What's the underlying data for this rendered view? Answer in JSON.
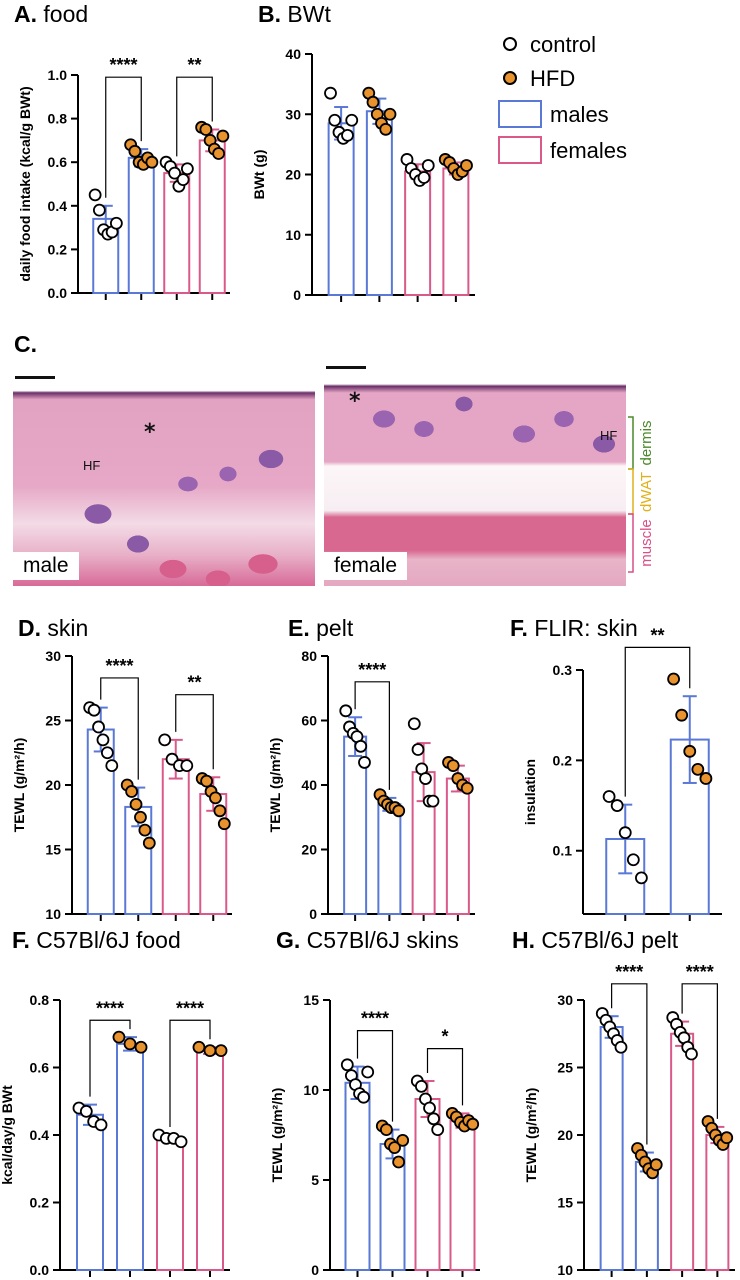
{
  "colors": {
    "male": "#5a78d6",
    "female": "#d95a8a",
    "hfd": "#e8932e",
    "control": "#ffffff"
  },
  "legend": {
    "control": "control",
    "hfd": "HFD",
    "males": "males",
    "females": "females"
  },
  "histology": {
    "panel_label": "C.",
    "male_label": "male",
    "female_label": "female",
    "hf": "HF",
    "asterisk": "*",
    "layers": {
      "dermis": "dermis",
      "dwat": "dWAT",
      "muscle": "muscle"
    }
  },
  "chart_data": [
    {
      "id": "A",
      "type": "bar",
      "letter": "A.",
      "title": "food",
      "ylabel": "daily food intake (kcal/g BWt)",
      "ylim": [
        0,
        1.0
      ],
      "yticks": [
        "0.0",
        "0.2",
        "0.4",
        "0.6",
        "0.8",
        "1.0"
      ],
      "ytick_values": [
        0,
        0.2,
        0.4,
        0.6,
        0.8,
        1.0
      ],
      "groups": [
        {
          "sex": "male",
          "diet": "control",
          "mean": 0.34,
          "sd": 0.06,
          "points": [
            0.45,
            0.38,
            0.29,
            0.27,
            0.28,
            0.32
          ]
        },
        {
          "sex": "male",
          "diet": "HFD",
          "mean": 0.62,
          "sd": 0.04,
          "points": [
            0.68,
            0.65,
            0.6,
            0.59,
            0.62,
            0.6
          ]
        },
        {
          "sex": "female",
          "diet": "control",
          "mean": 0.55,
          "sd": 0.04,
          "points": [
            0.6,
            0.58,
            0.55,
            0.49,
            0.52,
            0.57
          ]
        },
        {
          "sex": "female",
          "diet": "HFD",
          "mean": 0.7,
          "sd": 0.05,
          "points": [
            0.76,
            0.75,
            0.7,
            0.66,
            0.64,
            0.72
          ]
        }
      ],
      "sig": [
        {
          "from": 0,
          "to": 1,
          "label": "****",
          "level": 0.99
        },
        {
          "from": 2,
          "to": 3,
          "label": "**",
          "level": 0.99
        }
      ]
    },
    {
      "id": "B",
      "type": "bar",
      "letter": "B.",
      "title": "BWt",
      "ylabel": "BWt (g)",
      "ylim": [
        0,
        40
      ],
      "yticks": [
        "0",
        "10",
        "20",
        "30",
        "40"
      ],
      "ytick_values": [
        0,
        10,
        20,
        30,
        40
      ],
      "groups": [
        {
          "sex": "male",
          "diet": "control",
          "mean": 28.5,
          "sd": 2.7,
          "points": [
            33.5,
            29,
            27,
            26,
            26.5,
            29
          ]
        },
        {
          "sex": "male",
          "diet": "HFD",
          "mean": 30.5,
          "sd": 2.1,
          "points": [
            33.5,
            32,
            30,
            28.5,
            27.5,
            30
          ]
        },
        {
          "sex": "female",
          "diet": "control",
          "mean": 20.5,
          "sd": 1.2,
          "points": [
            22.5,
            21,
            20,
            19,
            19.5,
            21.5
          ]
        },
        {
          "sex": "female",
          "diet": "HFD",
          "mean": 21,
          "sd": 1.0,
          "points": [
            22.5,
            22,
            21,
            20,
            20.5,
            21.5
          ]
        }
      ],
      "sig": []
    },
    {
      "id": "D",
      "type": "bar",
      "letter": "D.",
      "title": "skin",
      "ylabel": "TEWL (g/m²/h)",
      "ylim": [
        10,
        30
      ],
      "yticks": [
        "10",
        "15",
        "20",
        "25",
        "30"
      ],
      "ytick_values": [
        10,
        15,
        20,
        25,
        30
      ],
      "groups": [
        {
          "sex": "male",
          "diet": "control",
          "mean": 24.3,
          "sd": 1.7,
          "points": [
            26,
            25.8,
            24.5,
            23.5,
            22.5,
            21.5
          ]
        },
        {
          "sex": "male",
          "diet": "HFD",
          "mean": 18.3,
          "sd": 1.5,
          "points": [
            20,
            19.5,
            18.5,
            17.5,
            16.5,
            15.5
          ]
        },
        {
          "sex": "female",
          "diet": "control",
          "mean": 22,
          "sd": 1.5,
          "points": [
            23.5,
            22,
            21.5,
            21.5
          ]
        },
        {
          "sex": "female",
          "diet": "HFD",
          "mean": 19.3,
          "sd": 1.3,
          "points": [
            20.5,
            20.3,
            19.5,
            19,
            18,
            17
          ]
        }
      ],
      "sig": [
        {
          "from": 0,
          "to": 1,
          "label": "****",
          "level": 28.3
        },
        {
          "from": 2,
          "to": 3,
          "label": "**",
          "level": 27.0
        }
      ]
    },
    {
      "id": "E",
      "type": "bar",
      "letter": "E.",
      "title": "pelt",
      "ylabel": "TEWL (g/m²/h)",
      "ylim": [
        0,
        80
      ],
      "yticks": [
        "0",
        "20",
        "40",
        "60",
        "80"
      ],
      "ytick_values": [
        0,
        20,
        40,
        60,
        80
      ],
      "groups": [
        {
          "sex": "male",
          "diet": "control",
          "mean": 55,
          "sd": 6,
          "points": [
            63,
            58,
            56,
            55,
            52,
            47
          ]
        },
        {
          "sex": "male",
          "diet": "HFD",
          "mean": 34,
          "sd": 2,
          "points": [
            37,
            35,
            34,
            33,
            33,
            32
          ]
        },
        {
          "sex": "female",
          "diet": "control",
          "mean": 44,
          "sd": 9,
          "points": [
            59,
            51,
            45,
            42,
            35,
            35
          ]
        },
        {
          "sex": "female",
          "diet": "HFD",
          "mean": 42,
          "sd": 4,
          "points": [
            47,
            46,
            42,
            40,
            39
          ]
        }
      ],
      "sig": [
        {
          "from": 0,
          "to": 1,
          "label": "****",
          "level": 72
        }
      ]
    },
    {
      "id": "F1",
      "type": "bar",
      "letter": "F.",
      "title": "FLIR: skin",
      "ylabel": "insulation",
      "ylim": [
        0.03,
        0.3
      ],
      "yticks": [
        "0.1",
        "0.2",
        "0.3"
      ],
      "ytick_values": [
        0.1,
        0.2,
        0.3
      ],
      "groups": [
        {
          "sex": "male",
          "diet": "control",
          "mean": 0.113,
          "sd": 0.038,
          "points": [
            0.16,
            0.15,
            0.12,
            0.09,
            0.07
          ]
        },
        {
          "sex": "male",
          "diet": "HFD",
          "mean": 0.223,
          "sd": 0.048,
          "points": [
            0.29,
            0.25,
            0.21,
            0.19,
            0.18
          ]
        }
      ],
      "sig": [
        {
          "from": 0,
          "to": 1,
          "label": "**",
          "level": 0.325
        }
      ]
    },
    {
      "id": "F2",
      "type": "bar",
      "letter": "F.",
      "title": "C57Bl/6J food",
      "ylabel": "kcal/day/g BWt",
      "ylim": [
        0,
        0.8
      ],
      "yticks": [
        "0.0",
        "0.2",
        "0.4",
        "0.6",
        "0.8"
      ],
      "ytick_values": [
        0,
        0.2,
        0.4,
        0.6,
        0.8
      ],
      "groups": [
        {
          "sex": "male",
          "diet": "control",
          "mean": 0.46,
          "sd": 0.03,
          "points": [
            0.48,
            0.47,
            0.44,
            0.43
          ]
        },
        {
          "sex": "male",
          "diet": "HFD",
          "mean": 0.67,
          "sd": 0.02,
          "points": [
            0.69,
            0.67,
            0.66
          ]
        },
        {
          "sex": "female",
          "diet": "control",
          "mean": 0.39,
          "sd": 0.01,
          "points": [
            0.4,
            0.39,
            0.39,
            0.38
          ]
        },
        {
          "sex": "female",
          "diet": "HFD",
          "mean": 0.65,
          "sd": 0.01,
          "points": [
            0.66,
            0.65,
            0.65
          ]
        }
      ],
      "sig": [
        {
          "from": 0,
          "to": 1,
          "label": "****",
          "level": 0.74
        },
        {
          "from": 2,
          "to": 3,
          "label": "****",
          "level": 0.74
        }
      ]
    },
    {
      "id": "G",
      "type": "bar",
      "letter": "G.",
      "title": "C57Bl/6J skins",
      "ylabel": "TEWL (g/m²/h)",
      "ylim": [
        0,
        15
      ],
      "yticks": [
        "0",
        "5",
        "10",
        "15"
      ],
      "ytick_values": [
        0,
        5,
        10,
        15
      ],
      "groups": [
        {
          "sex": "male",
          "diet": "control",
          "mean": 10.4,
          "sd": 0.9,
          "points": [
            11.4,
            10.8,
            10.3,
            9.8,
            9.6,
            11
          ]
        },
        {
          "sex": "male",
          "diet": "HFD",
          "mean": 7,
          "sd": 0.8,
          "points": [
            8,
            7.8,
            7,
            6.8,
            6,
            7.2
          ]
        },
        {
          "sex": "female",
          "diet": "control",
          "mean": 9.5,
          "sd": 1.0,
          "points": [
            10.5,
            10.2,
            9.5,
            9,
            8.4,
            7.8
          ]
        },
        {
          "sex": "female",
          "diet": "HFD",
          "mean": 8.3,
          "sd": 0.4,
          "points": [
            8.7,
            8.5,
            8.2,
            8,
            8.3,
            8.1
          ]
        }
      ],
      "sig": [
        {
          "from": 0,
          "to": 1,
          "label": "****",
          "level": 13.3
        },
        {
          "from": 2,
          "to": 3,
          "label": "*",
          "level": 12.3
        }
      ]
    },
    {
      "id": "H",
      "type": "bar",
      "letter": "H.",
      "title": "C57Bl/6J pelt",
      "ylabel": "TEWL (g/m²/h)",
      "ylim": [
        10,
        30
      ],
      "yticks": [
        "10",
        "15",
        "20",
        "25",
        "30"
      ],
      "ytick_values": [
        10,
        15,
        20,
        25,
        30
      ],
      "groups": [
        {
          "sex": "male",
          "diet": "control",
          "mean": 28,
          "sd": 0.8,
          "points": [
            29,
            28.5,
            28,
            27.5,
            27,
            26.5
          ]
        },
        {
          "sex": "male",
          "diet": "HFD",
          "mean": 18,
          "sd": 0.7,
          "points": [
            19,
            18.5,
            18,
            17.5,
            17.2,
            17.8
          ]
        },
        {
          "sex": "female",
          "diet": "control",
          "mean": 27.5,
          "sd": 0.9,
          "points": [
            28.7,
            28.2,
            27.6,
            27.2,
            26.5,
            26
          ]
        },
        {
          "sex": "female",
          "diet": "HFD",
          "mean": 20,
          "sd": 0.6,
          "points": [
            21,
            20.5,
            20,
            19.6,
            19.3,
            19.8
          ]
        }
      ],
      "sig": [
        {
          "from": 0,
          "to": 1,
          "label": "****",
          "level": 31.2
        },
        {
          "from": 2,
          "to": 3,
          "label": "****",
          "level": 31.2
        }
      ]
    }
  ]
}
